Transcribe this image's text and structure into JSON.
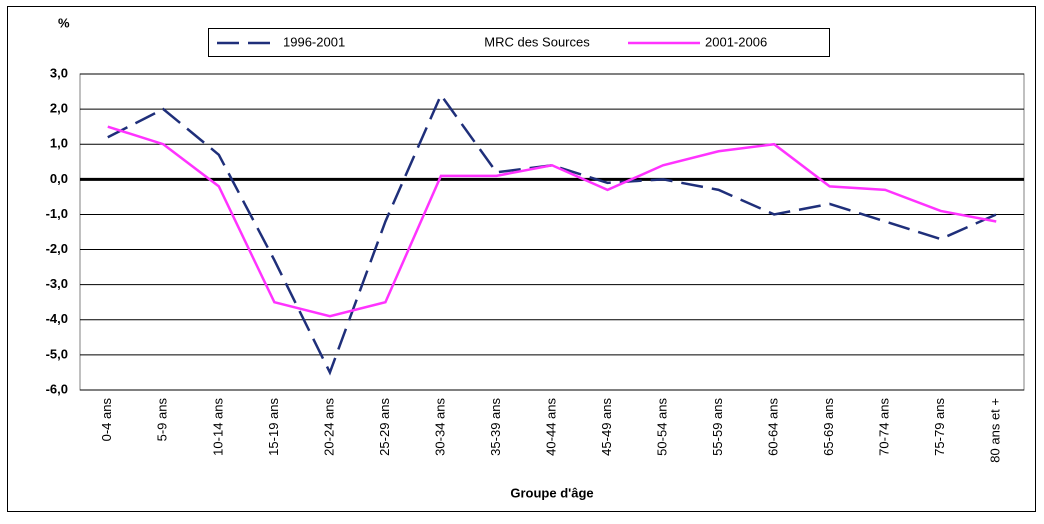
{
  "chart_data": {
    "type": "line",
    "title": "MRC des Sources",
    "ylabel": "%",
    "xlabel": "Groupe d'âge",
    "categories": [
      "0-4 ans",
      "5-9 ans",
      "10-14 ans",
      "15-19 ans",
      "20-24 ans",
      "25-29 ans",
      "30-34 ans",
      "35-39 ans",
      "40-44 ans",
      "45-49 ans",
      "50-54 ans",
      "55-59 ans",
      "60-64 ans",
      "65-69 ans",
      "70-74 ans",
      "75-79 ans",
      "80 ans et +"
    ],
    "series": [
      {
        "name": "1996-2001",
        "color": "#1f2f7a",
        "dashed": true,
        "values": [
          1.2,
          2.0,
          0.7,
          -2.3,
          -5.5,
          -1.2,
          2.4,
          0.2,
          0.4,
          -0.1,
          0.0,
          -0.3,
          -1.0,
          -0.7,
          -1.2,
          -1.7,
          -1.0
        ]
      },
      {
        "name": "2001-2006",
        "color": "#ff33ff",
        "dashed": false,
        "values": [
          1.5,
          1.0,
          -0.2,
          -3.5,
          -3.9,
          -3.5,
          0.1,
          0.1,
          0.4,
          -0.3,
          0.4,
          0.8,
          1.0,
          -0.2,
          -0.3,
          -0.9,
          -1.2
        ]
      }
    ],
    "ylim": [
      -6,
      3
    ],
    "yticks": [
      {
        "value": -6,
        "label": "-6,0"
      },
      {
        "value": -5,
        "label": "-5,0"
      },
      {
        "value": -4,
        "label": "-4,0"
      },
      {
        "value": -3,
        "label": "-3,0"
      },
      {
        "value": -2,
        "label": "-2,0"
      },
      {
        "value": -1,
        "label": "-1,0"
      },
      {
        "value": 0,
        "label": "0,0"
      },
      {
        "value": 1,
        "label": "1,0"
      },
      {
        "value": 2,
        "label": "2,0"
      },
      {
        "value": 3,
        "label": "3,0"
      }
    ],
    "grid": true
  }
}
